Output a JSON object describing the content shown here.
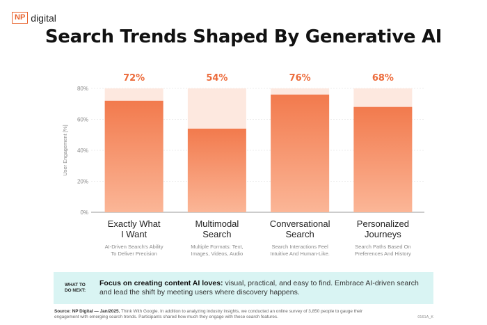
{
  "brand": {
    "logo_box": "NP",
    "logo_text": "digital",
    "accent_color": "#ec6b3b"
  },
  "title": "Search Trends Shaped By Generative AI",
  "chart_data": {
    "type": "bar",
    "title": "Search Trends Shaped By Generative AI",
    "ylabel": "User Engagement [%]",
    "ylim": [
      0,
      80
    ],
    "yticks": [
      "0%",
      "20%",
      "40%",
      "60%",
      "80%"
    ],
    "grid": true,
    "categories": [
      "Exactly What I Want",
      "Multimodal Search",
      "Conversational Search",
      "Personalized Journeys"
    ],
    "category_lines": [
      [
        "Exactly What",
        "I Want"
      ],
      [
        "Multimodal",
        "Search"
      ],
      [
        "Conversational",
        "Search"
      ],
      [
        "Personalized",
        "Journeys"
      ]
    ],
    "descriptions": [
      [
        "AI-Driven Search's Ability",
        "To Deliver Precision"
      ],
      [
        "Multiple Formats: Text,",
        "Images, Videos, Audio"
      ],
      [
        "Search Interactions Feel",
        "Intuitive And Human-Like."
      ],
      [
        "Search Paths Based On",
        "Preferences And History"
      ]
    ],
    "values": [
      72,
      54,
      76,
      68
    ],
    "value_labels": [
      "72%",
      "54%",
      "76%",
      "68%"
    ],
    "colors": {
      "bar_top": "#f27a4d",
      "bar_bottom": "#fbb697",
      "ghost": "#fde8df"
    }
  },
  "callout": {
    "tag_line1": "WHAT TO",
    "tag_line2": "DO NEXT:",
    "strong": "Focus on creating content AI loves:",
    "text": " visual, practical, and easy to find. Embrace AI-driven search and lead the shift by meeting users where discovery happens."
  },
  "source": {
    "label": "Source:",
    "attribution": "NP Digital — Jan/2025.",
    "text": " Think With Google. In addition to analyzing industry insights, we conducted an online survey of 3,850 people to gauge their engagement with emerging search trends. Participants shared how much they engage with these search features."
  },
  "code": "0161A_K"
}
